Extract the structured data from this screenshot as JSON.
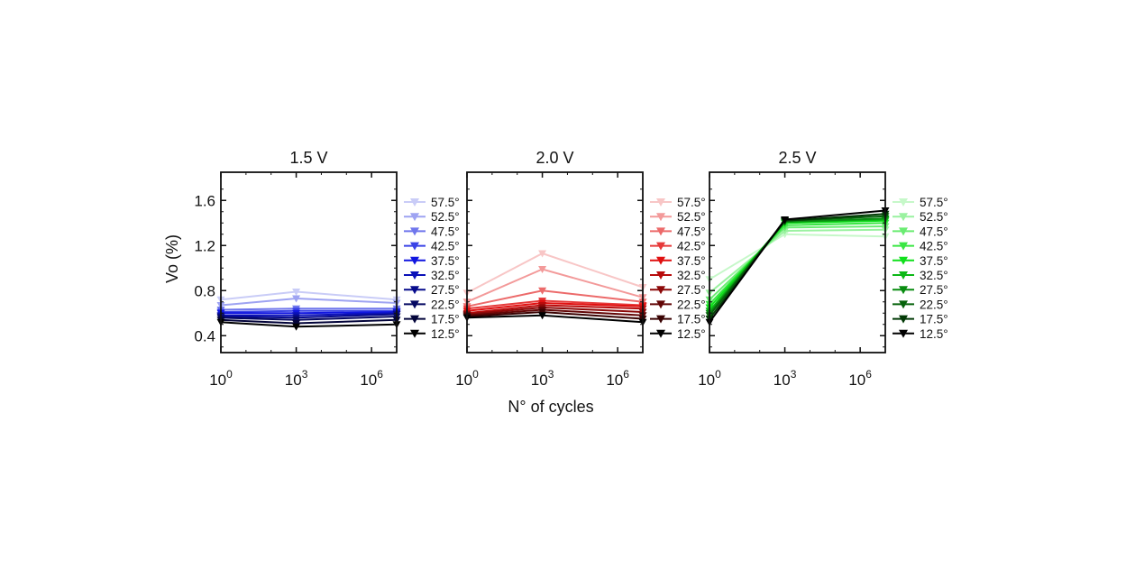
{
  "figure": {
    "shared_xlabel": "N° of cycles",
    "shared_ylabel": "Vo (%)"
  },
  "chart_data": [
    {
      "type": "line",
      "title": "1.5 V",
      "xscale": "log",
      "x": [
        1,
        1000,
        10000000
      ],
      "xticks": [
        {
          "value": 1,
          "base": "10",
          "exp": "0"
        },
        {
          "value": 1000,
          "base": "10",
          "exp": "3"
        },
        {
          "value": 1000000,
          "base": "10",
          "exp": "6"
        }
      ],
      "ylim": [
        0.25,
        1.85
      ],
      "yticks": [
        0.4,
        0.8,
        1.2,
        1.6
      ],
      "ytick_labels": [
        "0.4",
        "0.8",
        "1.2",
        "1.6"
      ],
      "legend_position": "right",
      "marker": "triangle-down",
      "series": [
        {
          "name": "57.5°",
          "color": "#c9ccf7",
          "values": [
            0.72,
            0.79,
            0.72
          ]
        },
        {
          "name": "52.5°",
          "color": "#9ea3f2",
          "values": [
            0.67,
            0.73,
            0.69
          ]
        },
        {
          "name": "47.5°",
          "color": "#6f76ec",
          "values": [
            0.63,
            0.64,
            0.64
          ]
        },
        {
          "name": "42.5°",
          "color": "#3a43e6",
          "values": [
            0.61,
            0.62,
            0.62
          ]
        },
        {
          "name": "37.5°",
          "color": "#1016e0",
          "values": [
            0.6,
            0.6,
            0.61
          ]
        },
        {
          "name": "32.5°",
          "color": "#0a10b8",
          "values": [
            0.58,
            0.58,
            0.6
          ]
        },
        {
          "name": "27.5°",
          "color": "#070b8c",
          "values": [
            0.57,
            0.56,
            0.59
          ]
        },
        {
          "name": "22.5°",
          "color": "#050862",
          "values": [
            0.56,
            0.54,
            0.57
          ]
        },
        {
          "name": "17.5°",
          "color": "#03043a",
          "values": [
            0.54,
            0.51,
            0.54
          ]
        },
        {
          "name": "12.5°",
          "color": "#000000",
          "values": [
            0.52,
            0.48,
            0.5
          ]
        }
      ]
    },
    {
      "type": "line",
      "title": "2.0 V",
      "xscale": "log",
      "x": [
        1,
        1000,
        10000000
      ],
      "xticks": [
        {
          "value": 1,
          "base": "10",
          "exp": "0"
        },
        {
          "value": 1000,
          "base": "10",
          "exp": "3"
        },
        {
          "value": 1000000,
          "base": "10",
          "exp": "6"
        }
      ],
      "ylim": [
        0.25,
        1.85
      ],
      "yticks": [
        0.4,
        0.8,
        1.2,
        1.6
      ],
      "ytick_labels": [
        "",
        "",
        "",
        ""
      ],
      "legend_position": "right",
      "marker": "triangle-down",
      "series": [
        {
          "name": "57.5°",
          "color": "#f8c6c6",
          "values": [
            0.78,
            1.13,
            0.83
          ]
        },
        {
          "name": "52.5°",
          "color": "#f39a9a",
          "values": [
            0.7,
            0.99,
            0.74
          ]
        },
        {
          "name": "47.5°",
          "color": "#ec6a6a",
          "values": [
            0.66,
            0.8,
            0.7
          ]
        },
        {
          "name": "42.5°",
          "color": "#e63a3a",
          "values": [
            0.64,
            0.71,
            0.67
          ]
        },
        {
          "name": "37.5°",
          "color": "#e01010",
          "values": [
            0.62,
            0.69,
            0.66
          ]
        },
        {
          "name": "32.5°",
          "color": "#b80c0c",
          "values": [
            0.6,
            0.67,
            0.64
          ]
        },
        {
          "name": "27.5°",
          "color": "#8c0909",
          "values": [
            0.59,
            0.65,
            0.61
          ]
        },
        {
          "name": "22.5°",
          "color": "#620606",
          "values": [
            0.58,
            0.63,
            0.58
          ]
        },
        {
          "name": "17.5°",
          "color": "#3a0303",
          "values": [
            0.57,
            0.61,
            0.55
          ]
        },
        {
          "name": "12.5°",
          "color": "#000000",
          "values": [
            0.56,
            0.58,
            0.52
          ]
        }
      ]
    },
    {
      "type": "line",
      "title": "2.5 V",
      "xscale": "log",
      "x": [
        1,
        1000,
        10000000
      ],
      "xticks": [
        {
          "value": 1,
          "base": "10",
          "exp": "0"
        },
        {
          "value": 1000,
          "base": "10",
          "exp": "3"
        },
        {
          "value": 1000000,
          "base": "10",
          "exp": "6"
        }
      ],
      "ylim": [
        0.25,
        1.85
      ],
      "yticks": [
        0.4,
        0.8,
        1.2,
        1.6
      ],
      "ytick_labels": [
        "",
        "",
        "",
        ""
      ],
      "legend_position": "right",
      "marker": "triangle-down",
      "series": [
        {
          "name": "57.5°",
          "color": "#c6f8c9",
          "values": [
            0.9,
            1.3,
            1.28
          ]
        },
        {
          "name": "52.5°",
          "color": "#9af2a0",
          "values": [
            0.78,
            1.33,
            1.34
          ]
        },
        {
          "name": "47.5°",
          "color": "#6aec72",
          "values": [
            0.72,
            1.36,
            1.37
          ]
        },
        {
          "name": "42.5°",
          "color": "#3ae644",
          "values": [
            0.68,
            1.38,
            1.4
          ]
        },
        {
          "name": "37.5°",
          "color": "#10e01c",
          "values": [
            0.65,
            1.4,
            1.42
          ]
        },
        {
          "name": "32.5°",
          "color": "#0cb816",
          "values": [
            0.62,
            1.41,
            1.43
          ]
        },
        {
          "name": "27.5°",
          "color": "#098c11",
          "values": [
            0.6,
            1.41,
            1.44
          ]
        },
        {
          "name": "22.5°",
          "color": "#06620b",
          "values": [
            0.58,
            1.42,
            1.46
          ]
        },
        {
          "name": "17.5°",
          "color": "#033a06",
          "values": [
            0.55,
            1.42,
            1.48
          ]
        },
        {
          "name": "12.5°",
          "color": "#000000",
          "values": [
            0.52,
            1.43,
            1.51
          ]
        }
      ]
    }
  ]
}
